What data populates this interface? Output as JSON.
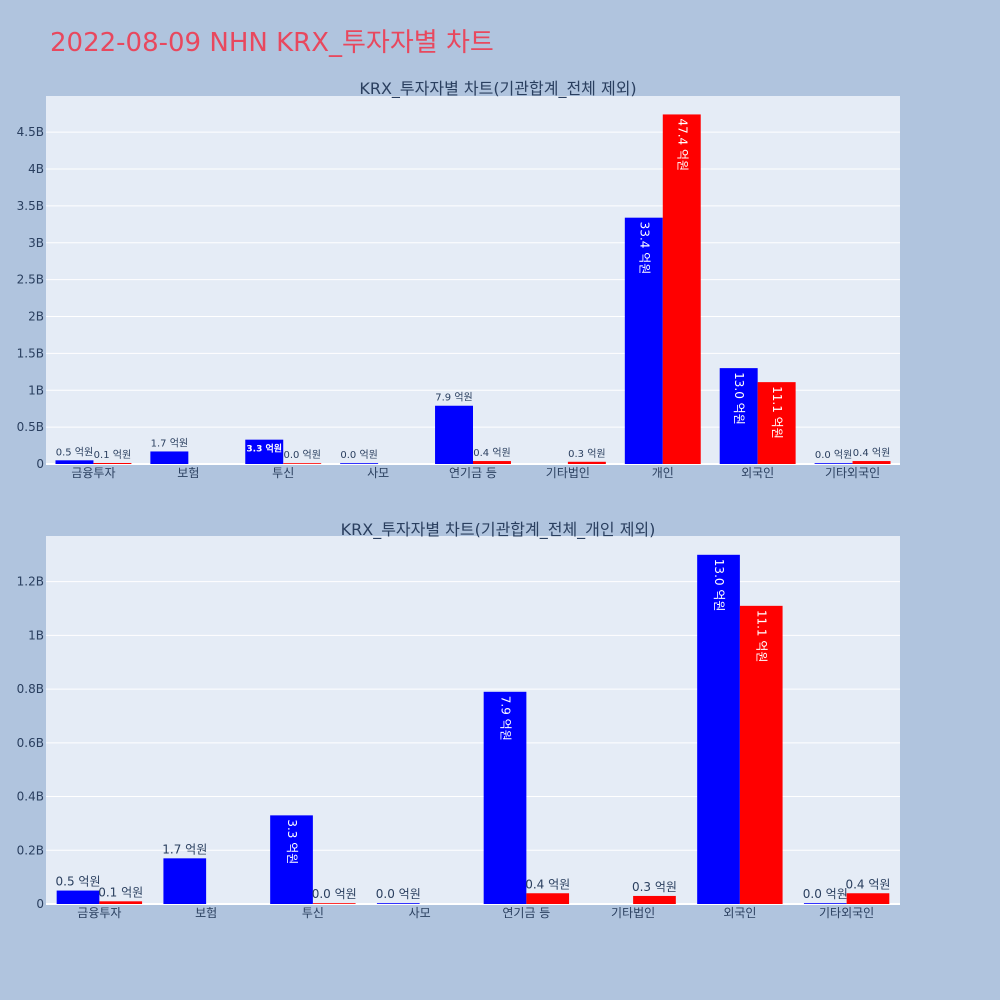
{
  "title": "2022-08-09 NHN KRX_투자자별 차트",
  "colors": {
    "buy": "#0000ff",
    "sell": "#ff0000",
    "background": "#b0c4de",
    "plot_bg": "#e5ecf6",
    "title": "#e8485e"
  },
  "chart_data": [
    {
      "type": "bar",
      "title": "KRX_투자자별 차트(기관합계_전체 제외)",
      "categories": [
        "금융투자",
        "보험",
        "투신",
        "사모",
        "연기금 등",
        "기타법인",
        "개인",
        "외국인",
        "기타외국인"
      ],
      "series": [
        {
          "values": [
            0.05,
            0.17,
            0.33,
            0.0,
            0.79,
            null,
            3.34,
            1.3,
            0.0
          ],
          "labels": [
            "0.5 억원",
            "1.7 억원",
            "3.3 억원",
            "0.0 억원",
            "7.9 억원",
            "",
            "33.4 억원",
            "13.0 억원",
            "0.0 억원"
          ]
        },
        {
          "values": [
            0.01,
            null,
            0.0,
            null,
            0.04,
            0.03,
            4.74,
            1.11,
            0.04
          ],
          "labels": [
            "0.1 억원",
            "",
            "0.0 억원",
            "",
            "0.4 억원",
            "0.3 억원",
            "47.4 억원",
            "11.1 억원",
            "0.4 억원"
          ]
        }
      ],
      "yticks": [
        "0",
        "0.5B",
        "1B",
        "1.5B",
        "2B",
        "2.5B",
        "3B",
        "3.5B",
        "4B",
        "4.5B"
      ],
      "ytick_values": [
        0,
        0.5,
        1,
        1.5,
        2,
        2.5,
        3,
        3.5,
        4,
        4.5
      ],
      "ylim": [
        0,
        4.99
      ]
    },
    {
      "type": "bar",
      "title": "KRX_투자자별 차트(기관합계_전체_개인 제외)",
      "categories": [
        "금융투자",
        "보험",
        "투신",
        "사모",
        "연기금 등",
        "기타법인",
        "외국인",
        "기타외국인"
      ],
      "series": [
        {
          "values": [
            0.05,
            0.17,
            0.33,
            0.0,
            0.79,
            null,
            1.3,
            0.0
          ],
          "labels": [
            "0.5 억원",
            "1.7 억원",
            "3.3 억원",
            "0.0 억원",
            "7.9 억원",
            "",
            "13.0 억원",
            "0.0 억원"
          ]
        },
        {
          "values": [
            0.01,
            null,
            0.0,
            null,
            0.04,
            0.03,
            1.11,
            0.04
          ],
          "labels": [
            "0.1 억원",
            "",
            "0.0 억원",
            "",
            "0.4 억원",
            "0.3 억원",
            "11.1 억원",
            "0.4 억원"
          ]
        }
      ],
      "yticks": [
        "0",
        "0.2B",
        "0.4B",
        "0.6B",
        "0.8B",
        "1B",
        "1.2B"
      ],
      "ytick_values": [
        0,
        0.2,
        0.4,
        0.6,
        0.8,
        1.0,
        1.2
      ],
      "ylim": [
        0,
        1.37
      ]
    }
  ]
}
